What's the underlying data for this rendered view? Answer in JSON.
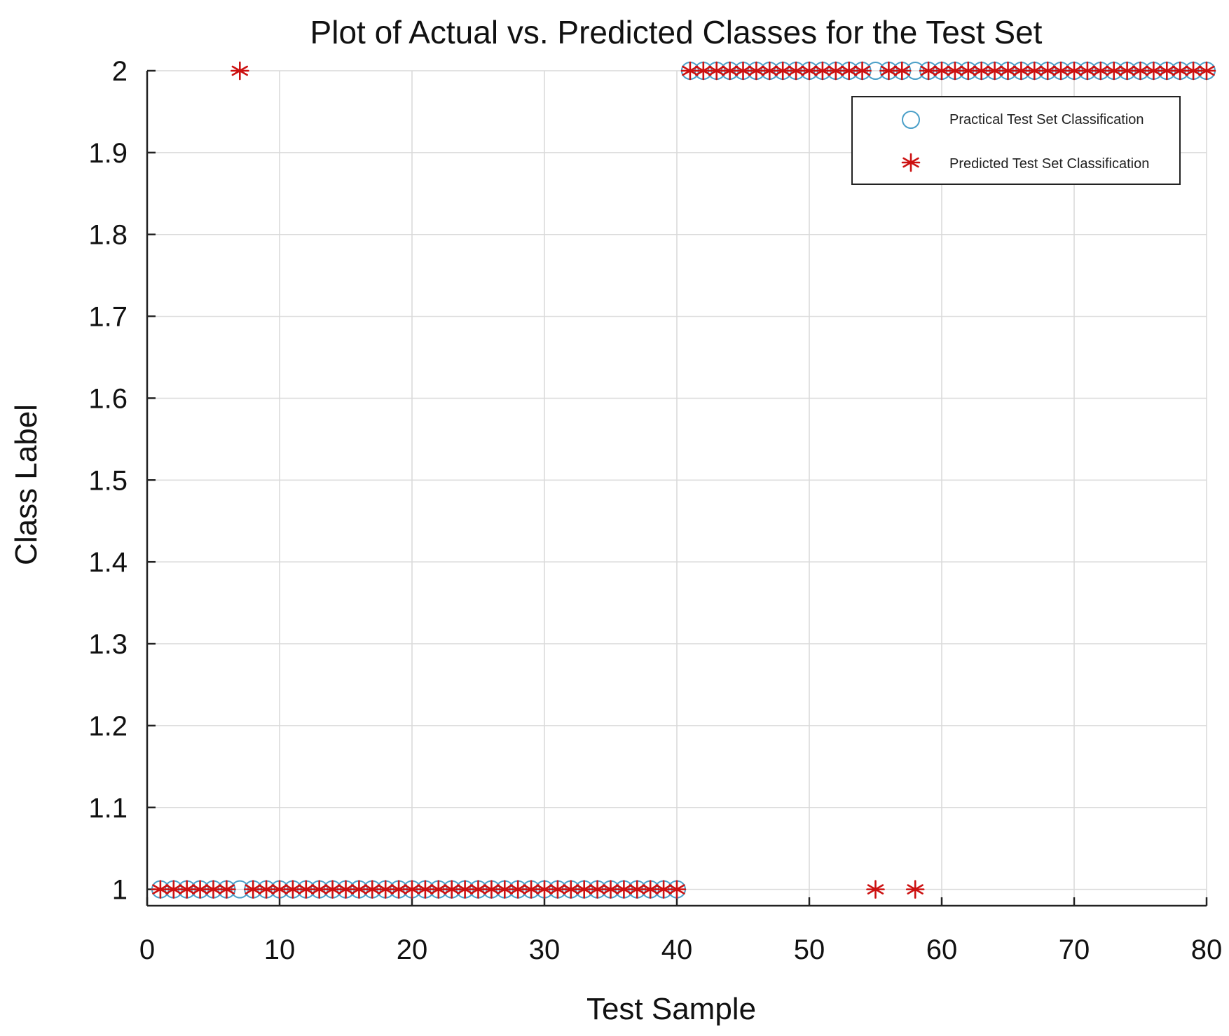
{
  "chart_data": {
    "type": "scatter",
    "title": "Plot of Actual vs. Predicted Classes for the Test Set",
    "xlabel": "Test Sample",
    "ylabel": "Class Label",
    "xlim": [
      0,
      80
    ],
    "ylim": [
      0.98,
      2
    ],
    "xticks": [
      0,
      10,
      20,
      30,
      40,
      50,
      60,
      70,
      80
    ],
    "xtick_labels": [
      "0",
      "10",
      "20",
      "30",
      "40",
      "50",
      "60",
      "70",
      "80"
    ],
    "yticks": [
      1,
      1.1,
      1.2,
      1.3,
      1.4,
      1.5,
      1.6,
      1.7,
      1.8,
      1.9,
      2
    ],
    "ytick_labels": [
      "1",
      "1.1",
      "1.2",
      "1.3",
      "1.4",
      "1.5",
      "1.6",
      "1.7",
      "1.8",
      "1.9",
      "2"
    ],
    "grid": true,
    "legend_position": "top-right",
    "series": [
      {
        "name": "Practical Test Set Classification",
        "marker": "circle",
        "color": "#4a9fc8",
        "x": [
          1,
          2,
          3,
          4,
          5,
          6,
          7,
          8,
          9,
          10,
          11,
          12,
          13,
          14,
          15,
          16,
          17,
          18,
          19,
          20,
          21,
          22,
          23,
          24,
          25,
          26,
          27,
          28,
          29,
          30,
          31,
          32,
          33,
          34,
          35,
          36,
          37,
          38,
          39,
          40,
          41,
          42,
          43,
          44,
          45,
          46,
          47,
          48,
          49,
          50,
          51,
          52,
          53,
          54,
          55,
          56,
          57,
          58,
          59,
          60,
          61,
          62,
          63,
          64,
          65,
          66,
          67,
          68,
          69,
          70,
          71,
          72,
          73,
          74,
          75,
          76,
          77,
          78,
          79,
          80
        ],
        "y": [
          1,
          1,
          1,
          1,
          1,
          1,
          1,
          1,
          1,
          1,
          1,
          1,
          1,
          1,
          1,
          1,
          1,
          1,
          1,
          1,
          1,
          1,
          1,
          1,
          1,
          1,
          1,
          1,
          1,
          1,
          1,
          1,
          1,
          1,
          1,
          1,
          1,
          1,
          1,
          1,
          2,
          2,
          2,
          2,
          2,
          2,
          2,
          2,
          2,
          2,
          2,
          2,
          2,
          2,
          2,
          2,
          2,
          2,
          2,
          2,
          2,
          2,
          2,
          2,
          2,
          2,
          2,
          2,
          2,
          2,
          2,
          2,
          2,
          2,
          2,
          2,
          2,
          2,
          2,
          2
        ]
      },
      {
        "name": "Predicted Test Set Classification",
        "marker": "asterisk",
        "color": "#cc1111",
        "x": [
          1,
          2,
          3,
          4,
          5,
          6,
          7,
          8,
          9,
          10,
          11,
          12,
          13,
          14,
          15,
          16,
          17,
          18,
          19,
          20,
          21,
          22,
          23,
          24,
          25,
          26,
          27,
          28,
          29,
          30,
          31,
          32,
          33,
          34,
          35,
          36,
          37,
          38,
          39,
          40,
          41,
          42,
          43,
          44,
          45,
          46,
          47,
          48,
          49,
          50,
          51,
          52,
          53,
          54,
          55,
          56,
          57,
          58,
          59,
          60,
          61,
          62,
          63,
          64,
          65,
          66,
          67,
          68,
          69,
          70,
          71,
          72,
          73,
          74,
          75,
          76,
          77,
          78,
          79,
          80
        ],
        "y": [
          1,
          1,
          1,
          1,
          1,
          1,
          2,
          1,
          1,
          1,
          1,
          1,
          1,
          1,
          1,
          1,
          1,
          1,
          1,
          1,
          1,
          1,
          1,
          1,
          1,
          1,
          1,
          1,
          1,
          1,
          1,
          1,
          1,
          1,
          1,
          1,
          1,
          1,
          1,
          1,
          2,
          2,
          2,
          2,
          2,
          2,
          2,
          2,
          2,
          2,
          2,
          2,
          2,
          2,
          1,
          2,
          2,
          1,
          2,
          2,
          2,
          2,
          2,
          2,
          2,
          2,
          2,
          2,
          2,
          2,
          2,
          2,
          2,
          2,
          2,
          2,
          2,
          2,
          2,
          2
        ]
      }
    ]
  }
}
